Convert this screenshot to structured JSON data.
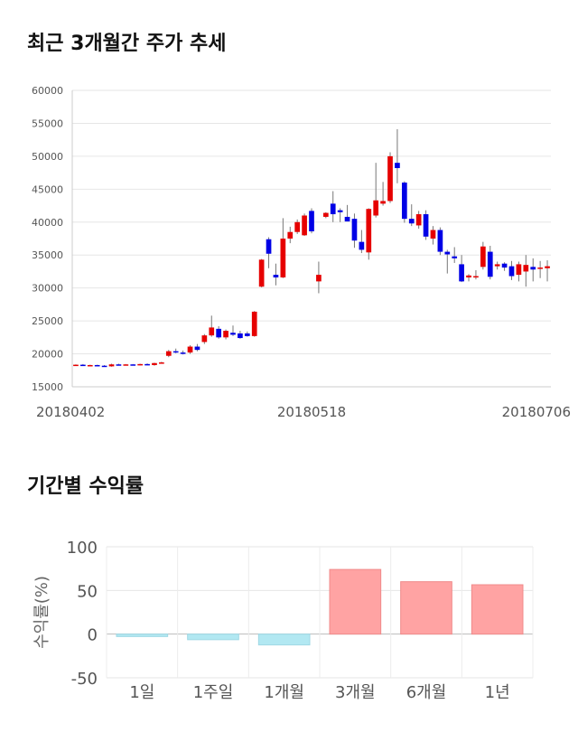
{
  "sections": {
    "price_trend_title": "최근 3개월간 주가 추세",
    "returns_title": "기간별 수익률"
  },
  "colors": {
    "up": "#e60000",
    "down": "#0000e6",
    "bar_pos": "#ffa3a3",
    "bar_neg": "#b2e8f2"
  },
  "chart_data": [
    {
      "type": "candlestick",
      "title": "",
      "ylim": [
        15000,
        60000
      ],
      "yticks": [
        "60000",
        "55000",
        "50000",
        "45000",
        "40000",
        "35000",
        "30000",
        "25000",
        "20000",
        "15000"
      ],
      "xtick_labels": [
        {
          "index": 0,
          "label": "20180402"
        },
        {
          "index": 33,
          "label": "20180518"
        },
        {
          "index": 66,
          "label": "20180706"
        }
      ],
      "candles": [
        [
          18300,
          18400,
          18200,
          18350
        ],
        [
          18350,
          18450,
          18250,
          18250
        ],
        [
          18250,
          18350,
          18150,
          18300
        ],
        [
          18300,
          18350,
          18150,
          18200
        ],
        [
          18200,
          18300,
          18050,
          18100
        ],
        [
          18100,
          18500,
          18050,
          18400
        ],
        [
          18400,
          18500,
          18300,
          18350
        ],
        [
          18350,
          18450,
          18250,
          18400
        ],
        [
          18400,
          18450,
          18300,
          18350
        ],
        [
          18350,
          18500,
          18250,
          18450
        ],
        [
          18450,
          18550,
          18350,
          18300
        ],
        [
          18300,
          18650,
          18200,
          18600
        ],
        [
          18600,
          18800,
          18500,
          18700
        ],
        [
          19700,
          20600,
          19500,
          20400
        ],
        [
          20400,
          20800,
          20100,
          20200
        ],
        [
          20200,
          20500,
          19900,
          20000
        ],
        [
          20200,
          21300,
          20000,
          21100
        ],
        [
          21100,
          21500,
          20400,
          20600
        ],
        [
          21800,
          23000,
          21500,
          22800
        ],
        [
          22800,
          25800,
          22600,
          24000
        ],
        [
          23800,
          24200,
          22300,
          22500
        ],
        [
          22500,
          23700,
          22200,
          23500
        ],
        [
          23200,
          24300,
          22700,
          22900
        ],
        [
          23100,
          23500,
          22300,
          22400
        ],
        [
          23100,
          23400,
          22600,
          22700
        ],
        [
          22700,
          26500,
          22600,
          26400
        ],
        [
          30200,
          34400,
          30100,
          34300
        ],
        [
          37400,
          37700,
          33000,
          35200
        ],
        [
          32000,
          33700,
          30400,
          31600
        ],
        [
          31600,
          40600,
          31500,
          37500
        ],
        [
          37500,
          39300,
          36800,
          38500
        ],
        [
          38500,
          40400,
          38200,
          40000
        ],
        [
          38000,
          41300,
          37900,
          41000
        ],
        [
          41700,
          42100,
          38300,
          38600
        ],
        [
          31000,
          34000,
          29200,
          32000
        ],
        [
          40800,
          41500,
          40600,
          41400
        ],
        [
          42800,
          44700,
          40000,
          41200
        ],
        [
          41800,
          42100,
          40000,
          41500
        ],
        [
          40800,
          42600,
          40100,
          40100
        ],
        [
          40500,
          41300,
          36100,
          37200
        ],
        [
          37000,
          38800,
          35300,
          35800
        ],
        [
          35400,
          42100,
          34300,
          42000
        ],
        [
          41000,
          49000,
          40700,
          43300
        ],
        [
          42800,
          46100,
          42500,
          43200
        ],
        [
          43200,
          50600,
          42900,
          50000
        ],
        [
          49000,
          54100,
          45900,
          48200
        ],
        [
          46000,
          46200,
          39900,
          40500
        ],
        [
          40500,
          42700,
          39400,
          39800
        ],
        [
          39500,
          41700,
          39000,
          41200
        ],
        [
          41200,
          41800,
          37300,
          37800
        ],
        [
          37500,
          39400,
          36600,
          38800
        ],
        [
          38800,
          39200,
          35000,
          35500
        ],
        [
          35500,
          35800,
          32200,
          35100
        ],
        [
          34800,
          36200,
          33800,
          34500
        ],
        [
          33600,
          35000,
          30900,
          31000
        ],
        [
          31600,
          32100,
          31000,
          31900
        ],
        [
          31700,
          32700,
          31300,
          31800
        ],
        [
          33200,
          37000,
          32800,
          36300
        ],
        [
          35500,
          36400,
          31300,
          31700
        ],
        [
          33300,
          34000,
          32800,
          33600
        ],
        [
          33700,
          33900,
          32600,
          33100
        ],
        [
          33300,
          34100,
          31200,
          31800
        ],
        [
          32000,
          34000,
          31000,
          33600
        ],
        [
          32500,
          35000,
          30200,
          33500
        ],
        [
          33200,
          34500,
          31000,
          32800
        ],
        [
          32900,
          34100,
          31500,
          33100
        ],
        [
          33000,
          34200,
          31000,
          33300
        ]
      ]
    },
    {
      "type": "bar",
      "ylabel": "수익률(%)",
      "ylim": [
        -50,
        100
      ],
      "yticks": [
        "100",
        "50",
        "0",
        "-50"
      ],
      "categories": [
        "1일",
        "1주일",
        "1개월",
        "3개월",
        "6개월",
        "1년"
      ],
      "values": [
        -2.8,
        -6.4,
        -12.4,
        74.0,
        60.0,
        56.5
      ]
    }
  ]
}
